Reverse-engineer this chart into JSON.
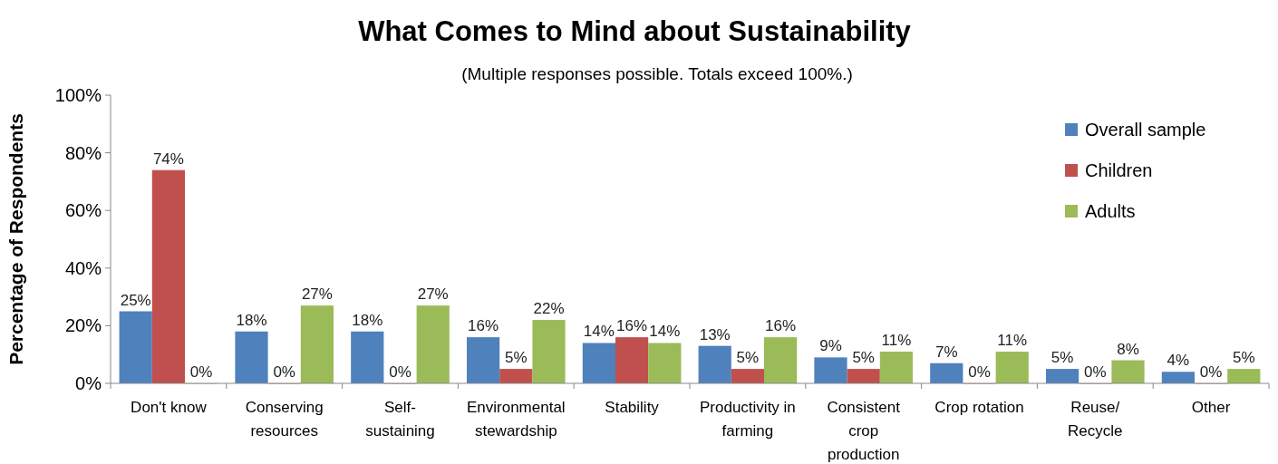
{
  "chart_data": {
    "type": "bar",
    "title": "What Comes to Mind about Sustainability",
    "subtitle": "(Multiple responses possible. Totals exceed 100%.)",
    "ylabel": "Percentage of Respondents",
    "categories": [
      "Don't know",
      "Conserving resources",
      "Self-sustaining",
      "Environmental stewardship",
      "Stability",
      "Productivity in farming",
      "Consistent crop production",
      "Crop rotation",
      "Reuse/Recycle",
      "Other"
    ],
    "series": [
      {
        "name": "Overall sample",
        "color": "#4f81bd",
        "values": [
          25,
          18,
          18,
          16,
          14,
          13,
          9,
          7,
          5,
          4
        ],
        "value_labels": [
          "25%",
          "18%",
          "18%",
          "16%",
          "14%",
          "13%",
          "9%",
          "7%",
          "5%",
          "4%"
        ]
      },
      {
        "name": "Children",
        "color": "#c0504d",
        "values": [
          74,
          0,
          0,
          5,
          16,
          5,
          5,
          0,
          0,
          0
        ],
        "value_labels": [
          "74%",
          "0%",
          "0%",
          "5%",
          "16%",
          "5%",
          "5%",
          "0%",
          "0%",
          "0%"
        ]
      },
      {
        "name": "Adults",
        "color": "#9bbb59",
        "values": [
          0,
          27,
          27,
          22,
          14,
          16,
          11,
          11,
          8,
          5
        ],
        "value_labels": [
          "0%",
          "27%",
          "27%",
          "22%",
          "14%",
          "16%",
          "11%",
          "11%",
          "8%",
          "5%"
        ]
      }
    ],
    "ylim": [
      0,
      100
    ],
    "yticks": [
      {
        "value": 0,
        "label": "0%"
      },
      {
        "value": 20,
        "label": "20%"
      },
      {
        "value": 40,
        "label": "40%"
      },
      {
        "value": 60,
        "label": "60%"
      },
      {
        "value": 80,
        "label": "80%"
      },
      {
        "value": 100,
        "label": "100%"
      }
    ],
    "grid": false,
    "legend": "top right"
  }
}
